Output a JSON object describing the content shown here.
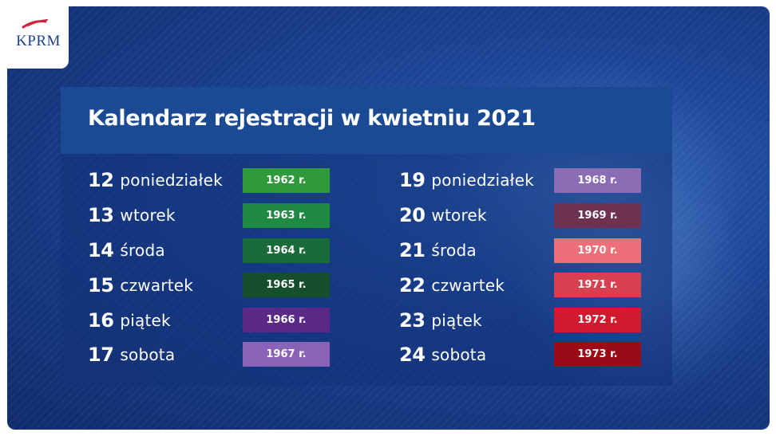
{
  "logo": {
    "text": "KPRM"
  },
  "title": "Kalendarz rejestracji w kwietniu 2021",
  "left_column": [
    {
      "num": "12",
      "day": "poniedziałek",
      "year": "1962 r.",
      "color": "#2f9a3a"
    },
    {
      "num": "13",
      "day": "wtorek",
      "year": "1963 r.",
      "color": "#1f8a44"
    },
    {
      "num": "14",
      "day": "środa",
      "year": "1964 r.",
      "color": "#1a6b3a"
    },
    {
      "num": "15",
      "day": "czwartek",
      "year": "1965 r.",
      "color": "#164f2c"
    },
    {
      "num": "16",
      "day": "piątek",
      "year": "1966 r.",
      "color": "#5b2a86"
    },
    {
      "num": "17",
      "day": "sobota",
      "year": "1967 r.",
      "color": "#8a63b8"
    }
  ],
  "right_column": [
    {
      "num": "19",
      "day": "poniedziałek",
      "year": "1968 r.",
      "color": "#8a6db5"
    },
    {
      "num": "20",
      "day": "wtorek",
      "year": "1969 r.",
      "color": "#6e3152"
    },
    {
      "num": "21",
      "day": "środa",
      "year": "1970 r.",
      "color": "#ee6f7a"
    },
    {
      "num": "22",
      "day": "czwartek",
      "year": "1971 r.",
      "color": "#d9404f"
    },
    {
      "num": "23",
      "day": "piątek",
      "year": "1972 r.",
      "color": "#d21a2e"
    },
    {
      "num": "24",
      "day": "sobota",
      "year": "1973 r.",
      "color": "#9a0a17"
    }
  ]
}
